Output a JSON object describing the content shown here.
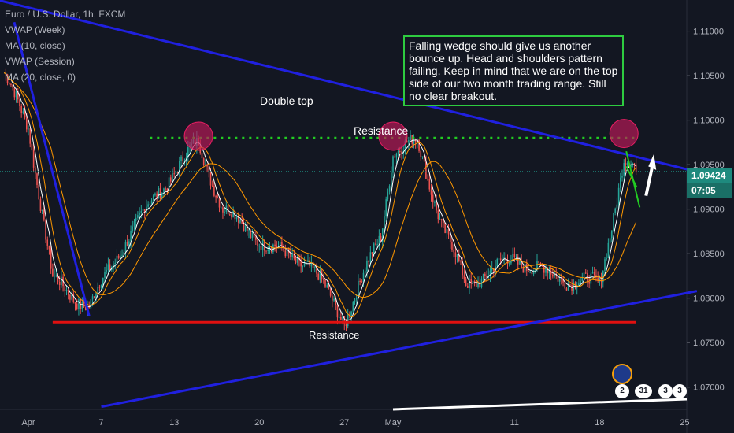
{
  "header": {
    "symbol_title": "Euro / U.S. Dollar, 1h, FXCM",
    "indicators": [
      "VWAP (Week)",
      "MA (10, close)",
      "VWAP (Session)",
      "MA (20, close, 0)"
    ]
  },
  "annotations": {
    "note": "Falling wedge should give us another bounce up. Head and shoulders pattern failing. Keep in mind that we are on the top side of our two month trading range. Still no clear breakout.",
    "double_top": "Double top",
    "resistance_top": "Resistance",
    "resistance_bottom": "Resistance"
  },
  "price_tags": {
    "last_price": "1.09424",
    "countdown": "07:05"
  },
  "events": {
    "badge_labels": [
      "2",
      "31",
      "3",
      "3"
    ]
  },
  "colors": {
    "background": "#131722",
    "trend_lines": "#2020e0",
    "support_line": "#e01010",
    "resistance_dotted": "#22cc22",
    "circle_fill": "#c2185b",
    "candle_up": "#26a69a",
    "candle_down": "#ef5350",
    "ma10": "#ffffff",
    "ma20": "#ff9800",
    "vwap": "#ff9800"
  },
  "chart_data": {
    "type": "candlestick",
    "symbol": "EURUSD",
    "interval": "1h",
    "x_ticks": [
      "Apr",
      "7",
      "13",
      "20",
      "27",
      "May",
      "11",
      "18",
      "25"
    ],
    "y_ticks": [
      "1.11000",
      "1.10500",
      "1.10000",
      "1.09500",
      "1.09000",
      "1.08500",
      "1.08000",
      "1.07500",
      "1.07000"
    ],
    "ylim": [
      1.0675,
      1.1135
    ],
    "last_price": 1.09424,
    "price_path_dates": [
      "2020-03-30",
      "2020-04-01",
      "2020-04-03",
      "2020-04-06",
      "2020-04-09",
      "2020-04-12",
      "2020-04-15",
      "2020-04-17",
      "2020-04-21",
      "2020-04-24",
      "2020-04-27",
      "2020-04-30",
      "2020-05-01",
      "2020-05-03",
      "2020-05-05",
      "2020-05-07",
      "2020-05-11",
      "2020-05-14",
      "2020-05-18",
      "2020-05-20",
      "2020-05-21"
    ],
    "price_path": [
      1.105,
      1.0995,
      1.082,
      1.079,
      1.0865,
      1.0925,
      1.0975,
      1.09,
      1.0855,
      1.084,
      1.0775,
      1.087,
      1.0965,
      1.0975,
      1.0885,
      1.0815,
      1.0845,
      1.0825,
      1.0815,
      1.0955,
      1.0942
    ],
    "levels": {
      "resistance": 1.098,
      "support": 1.0773
    },
    "trend_lines": [
      {
        "name": "upper",
        "from": {
          "date": "2020-03-28",
          "price": 1.114
        },
        "to": {
          "date": "2020-05-26",
          "price": 1.0942
        }
      },
      {
        "name": "lower",
        "from": {
          "date": "2020-04-07",
          "price": 1.0678
        },
        "to": {
          "date": "2020-05-26",
          "price": 1.0808
        }
      }
    ],
    "highlighted_tops": [
      {
        "date": "2020-04-15",
        "price": 1.0982
      },
      {
        "date": "2020-05-01",
        "price": 1.0982
      },
      {
        "date": "2020-05-20",
        "price": 1.0985
      }
    ]
  }
}
